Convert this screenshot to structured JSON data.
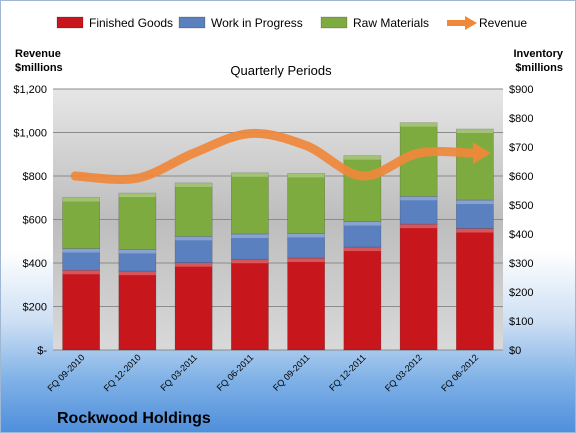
{
  "chart_data": {
    "type": "bar",
    "stacked": true,
    "title": "Quarterly Periods",
    "company": "Rockwood Holdings",
    "categories": [
      "FQ 09-2010",
      "FQ 12-2010",
      "FQ 03-2011",
      "FQ 06-2011",
      "FQ 09-2011",
      "FQ 12-2011",
      "FQ 03-2012",
      "FQ 06-2012"
    ],
    "series": [
      {
        "name": "Finished Goods",
        "color": "#c8161d",
        "axis": "right",
        "values": [
          275,
          272,
          301,
          313,
          317,
          355,
          434,
          419
        ]
      },
      {
        "name": "Work in Progress",
        "color": "#5a80bf",
        "axis": "right",
        "values": [
          75,
          75,
          91,
          87,
          85,
          88,
          96,
          98
        ]
      },
      {
        "name": "Raw Materials",
        "color": "#7eab3f",
        "axis": "right",
        "values": [
          176,
          194,
          184,
          211,
          207,
          227,
          254,
          245
        ]
      }
    ],
    "line_series": {
      "name": "Revenue",
      "color": "#f0883a",
      "axis": "left",
      "values": [
        800,
        790,
        905,
        995,
        940,
        800,
        905,
        905
      ]
    },
    "left_axis": {
      "title_line1": "Revenue",
      "title_line2": "$millions",
      "min": 0,
      "max": 1200,
      "ticks": [
        0,
        200,
        400,
        600,
        800,
        1000,
        1200
      ],
      "tick_labels": [
        "$-",
        "$200",
        "$400",
        "$600",
        "$800",
        "$1,000",
        "$1,200"
      ]
    },
    "right_axis": {
      "title_line1": "Inventory",
      "title_line2": "$millions",
      "min": 0,
      "max": 900,
      "ticks": [
        0,
        100,
        200,
        300,
        400,
        500,
        600,
        700,
        800,
        900
      ],
      "tick_labels": [
        "$0",
        "$100",
        "$200",
        "$300",
        "$400",
        "$500",
        "$600",
        "$700",
        "$800",
        "$900"
      ]
    },
    "legend_position": "top",
    "grid": true
  }
}
